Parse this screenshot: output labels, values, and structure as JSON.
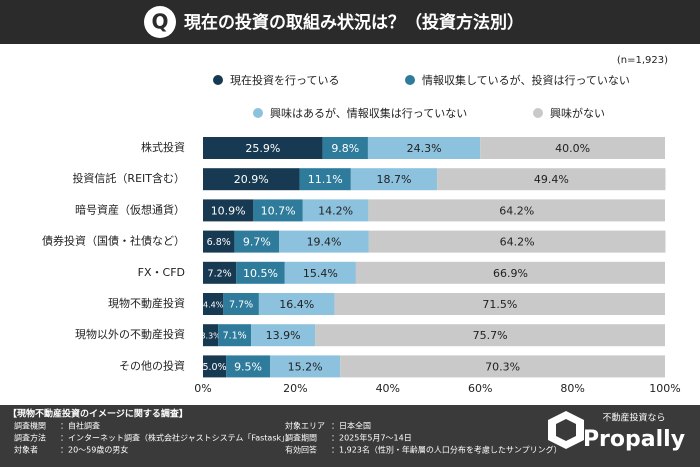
{
  "header": {
    "badge": "Q",
    "title": "現在の投資の取組み状況は？（投資方法別）"
  },
  "chart_data": {
    "type": "stacked-barh",
    "note": "(n=1,923)",
    "categories": [
      "株式投資",
      "投資信託（REIT含む）",
      "暗号資産（仮想通貨）",
      "債券投資（国債・社債など）",
      "FX・CFD",
      "現物不動産投資",
      "現物以外の不動産投資",
      "その他の投資"
    ],
    "series": [
      {
        "name": "現在投資を行っている",
        "color": "#173a52",
        "values": [
          25.9,
          20.9,
          10.9,
          6.8,
          7.2,
          4.4,
          3.3,
          5.0
        ],
        "value_labels": [
          "25.9%",
          "20.9%",
          "10.9%",
          "6.8%",
          "7.2%",
          "4.4%",
          "3.3%",
          "5.0%"
        ]
      },
      {
        "name": "情報収集しているが、投資は行っていない",
        "color": "#2f7b9c",
        "values": [
          9.8,
          11.1,
          10.7,
          9.7,
          10.5,
          7.7,
          7.1,
          9.5
        ],
        "value_labels": [
          "9.8%",
          "11.1%",
          "10.7%",
          "9.7%",
          "10.5%",
          "7.7%",
          "7.1%",
          "9.5%"
        ]
      },
      {
        "name": "興味はあるが、情報収集は行っていない",
        "color": "#8dc2de",
        "values": [
          24.3,
          18.7,
          14.2,
          19.4,
          15.4,
          16.4,
          13.9,
          15.2
        ],
        "value_labels": [
          "24.3%",
          "18.7%",
          "14.2%",
          "19.4%",
          "15.4%",
          "16.4%",
          "13.9%",
          "15.2%"
        ]
      },
      {
        "name": "興味がない",
        "color": "#c9c9c9",
        "values": [
          40.0,
          49.4,
          64.2,
          64.2,
          66.9,
          71.5,
          75.7,
          70.3
        ],
        "value_labels": [
          "40.0%",
          "49.4%",
          "64.2%",
          "64.2%",
          "66.9%",
          "71.5%",
          "75.7%",
          "70.3%"
        ]
      }
    ],
    "xlim": [
      0,
      100
    ],
    "xticks": [
      {
        "value": 0,
        "label": "0%"
      },
      {
        "value": 20,
        "label": "20%"
      },
      {
        "value": 40,
        "label": "40%"
      },
      {
        "value": 60,
        "label": "60%"
      },
      {
        "value": 80,
        "label": "80%"
      },
      {
        "value": 100,
        "label": "100%"
      }
    ],
    "grid": false
  },
  "footer": {
    "title": "【現物不動産投資のイメージに関する調査】",
    "left": [
      {
        "label": "調査機関",
        "value": "：自社調査"
      },
      {
        "label": "調査方法",
        "value": "：インターネット調査（株式会社ジャストシステム「Fastask」）"
      },
      {
        "label": "対象者",
        "value": "：20～59歳の男女"
      }
    ],
    "right": [
      {
        "label": "対象エリア",
        "value": "：日本全国"
      },
      {
        "label": "調査期間",
        "value": "：2025年5月7～14日"
      },
      {
        "label": "有効回答",
        "value": "：1,923名（性別・年齢層の人口分布を考慮したサンプリング）"
      }
    ],
    "logo_tagline": "不動産投資なら",
    "logo_name": "Propally"
  }
}
